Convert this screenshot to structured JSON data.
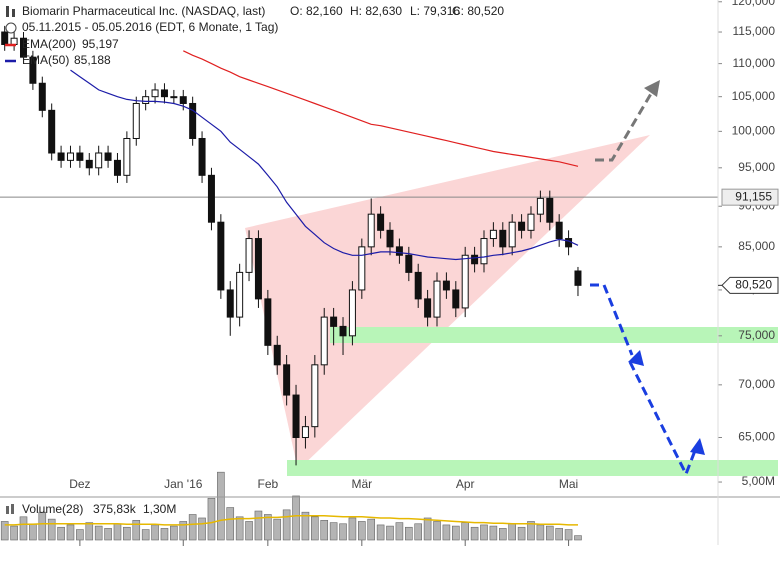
{
  "chart_data": [
    {
      "type": "candlestick",
      "title": "Biomarin Pharmaceutical Inc. (NASDAQ, last)",
      "quote": [
        "O: 82,160",
        "H: 82,630",
        "L: 79,316",
        "C: 80,520"
      ],
      "subtitle": "05.11.2015 - 05.05.2016 (EDT, 6 Monate, 1 Tag)",
      "categories": [
        null,
        null,
        null,
        null,
        null,
        null,
        null,
        null,
        null,
        null,
        null,
        null,
        null,
        null,
        null,
        null,
        null,
        null,
        null,
        null,
        null,
        null,
        null,
        null,
        null,
        null,
        null,
        null,
        null,
        null,
        null,
        null,
        null,
        null,
        null,
        null,
        null,
        null,
        null,
        null,
        null,
        null,
        null,
        null,
        null,
        null,
        null,
        null,
        null,
        null,
        null,
        null,
        null,
        null,
        null,
        null,
        null,
        null,
        null,
        null,
        null,
        null
      ],
      "open": [
        115,
        113,
        114,
        111,
        107,
        103,
        97,
        96,
        97,
        96,
        95,
        97,
        96,
        94,
        99,
        104,
        105,
        106,
        105,
        105,
        104,
        99,
        94,
        88,
        80,
        77,
        82,
        86,
        79,
        74,
        72,
        69,
        65,
        66,
        72,
        77,
        76,
        75,
        80,
        85,
        89,
        87,
        85,
        84,
        82,
        79,
        77,
        81,
        80,
        78,
        84,
        83,
        86,
        87,
        85,
        88,
        87,
        89,
        91,
        88,
        86,
        82.16
      ],
      "high": [
        116,
        115,
        115,
        112,
        108,
        104,
        98,
        98,
        98,
        97,
        98,
        98,
        97,
        100,
        105,
        106,
        107,
        107,
        106,
        106,
        105,
        100,
        95,
        89,
        81,
        83,
        87,
        87,
        80,
        75,
        73,
        70,
        67,
        73,
        78,
        78,
        77,
        81,
        86,
        91,
        90,
        88,
        86,
        85,
        83,
        80,
        82,
        82,
        81,
        85,
        85,
        87,
        88,
        88,
        89,
        89,
        90,
        92,
        92,
        89,
        87,
        82.63
      ],
      "low": [
        112,
        112,
        110,
        106,
        102,
        96,
        95,
        95,
        95,
        94,
        94,
        95,
        93,
        93,
        98,
        103,
        104,
        104,
        104,
        103,
        98,
        93,
        87,
        79,
        75,
        76,
        81,
        78,
        73,
        71,
        68,
        62.5,
        64,
        65,
        71,
        74,
        73,
        74,
        79,
        84,
        86,
        84,
        83,
        81,
        78,
        76,
        76,
        79,
        77,
        77,
        82,
        82,
        85,
        84,
        84,
        86,
        86,
        88,
        87,
        85,
        84,
        79.316
      ],
      "close": [
        113,
        114,
        111,
        107,
        103,
        97,
        96,
        97,
        96,
        95,
        97,
        96,
        94,
        99,
        104,
        105,
        106,
        105,
        105,
        104,
        99,
        94,
        88,
        80,
        77,
        82,
        86,
        79,
        74,
        72,
        69,
        65,
        66,
        72,
        77,
        76,
        75,
        80,
        85,
        89,
        87,
        85,
        84,
        82,
        79,
        77,
        81,
        80,
        78,
        84,
        83,
        86,
        87,
        85,
        88,
        87,
        89,
        91,
        88,
        86,
        85,
        80.52
      ],
      "series": [
        {
          "name": "EMA(200)",
          "color": "#e02020",
          "last_label": "95,197",
          "values": [
            null,
            null,
            null,
            null,
            null,
            null,
            null,
            null,
            null,
            null,
            null,
            null,
            null,
            null,
            null,
            null,
            null,
            null,
            null,
            112,
            111.3,
            110.7,
            110,
            109.3,
            108.7,
            108,
            107.5,
            107,
            106.5,
            106,
            105.5,
            105,
            104.5,
            104,
            103.5,
            103,
            102.5,
            102,
            101.5,
            101,
            100.8,
            100.5,
            100.2,
            99.9,
            99.6,
            99.3,
            99,
            98.7,
            98.4,
            98.1,
            97.8,
            97.5,
            97.2,
            97,
            96.8,
            96.6,
            96.4,
            96.2,
            96,
            95.8,
            95.5,
            95.197
          ]
        },
        {
          "name": "EMA(50)",
          "color": "#1c1ca8",
          "last_label": "85,188",
          "values": [
            null,
            null,
            null,
            null,
            null,
            null,
            null,
            109,
            108,
            107,
            106,
            105.5,
            105,
            104.6,
            104.4,
            104.3,
            104.3,
            104.2,
            104,
            103.6,
            103,
            102,
            101,
            100,
            98.5,
            97.5,
            96.5,
            95.5,
            94,
            92.5,
            90.5,
            89,
            87.5,
            86.5,
            85.5,
            84.8,
            84.3,
            84,
            84,
            84.2,
            84.4,
            84.4,
            84.3,
            84.2,
            84,
            83.8,
            83.7,
            83.6,
            83.5,
            83.6,
            83.7,
            83.8,
            84,
            84.1,
            84.3,
            84.5,
            84.8,
            85.2,
            85.6,
            85.9,
            85.7,
            85.188
          ]
        }
      ],
      "xlim": [
        0,
        76.4
      ],
      "xticks": [
        {
          "value": 8,
          "label": "Dez"
        },
        {
          "value": 19,
          "label": "Jan '16"
        },
        {
          "value": 28,
          "label": "Feb"
        },
        {
          "value": 38,
          "label": "Mär"
        },
        {
          "value": 49,
          "label": "Apr"
        },
        {
          "value": 60,
          "label": "Mai"
        }
      ],
      "ylim": [
        61.4,
        120.3
      ],
      "log": true,
      "yticks": [
        {
          "value": 65,
          "label": "65,000"
        },
        {
          "value": 70,
          "label": "70,000"
        },
        {
          "value": 75,
          "label": "75,000"
        },
        {
          "value": 80,
          "label": "80,000"
        },
        {
          "value": 85,
          "label": "85,000"
        },
        {
          "value": 90,
          "label": "90,000"
        },
        {
          "value": 95,
          "label": "95,000"
        },
        {
          "value": 100,
          "label": "100,000"
        },
        {
          "value": 105,
          "label": "105,000"
        },
        {
          "value": 110,
          "label": "110,000"
        },
        {
          "value": 115,
          "label": "115,000"
        },
        {
          "value": 120,
          "label": "120,000"
        }
      ],
      "hline": {
        "value": 91.155,
        "label": "91,155"
      },
      "last_price": {
        "value": 80.52,
        "label": "80,520"
      }
    },
    {
      "type": "bar",
      "categories": [
        null,
        null,
        null,
        null,
        null,
        null,
        null,
        null,
        null,
        null,
        null,
        null,
        null,
        null,
        null,
        null,
        null,
        null,
        null,
        null,
        null,
        null,
        null,
        null,
        null,
        null,
        null,
        null,
        null,
        null,
        null,
        null,
        null,
        null,
        null,
        null,
        null,
        null,
        null,
        null,
        null,
        null,
        null,
        null,
        null,
        null,
        null,
        null,
        null,
        null,
        null,
        null,
        null,
        null,
        null,
        null,
        null,
        null,
        null,
        null,
        null,
        null
      ],
      "series": [
        {
          "name": "Volume(28)",
          "color": "#b4b4b4",
          "last_label": "375,83k",
          "values": [
            1.6,
            1.2,
            2.0,
            1.4,
            2.4,
            1.8,
            1.1,
            1.3,
            0.9,
            1.5,
            1.2,
            1.0,
            1.4,
            1.1,
            1.7,
            0.9,
            1.3,
            1.0,
            1.2,
            1.6,
            2.2,
            1.9,
            3.6,
            5.85,
            2.8,
            2.0,
            1.6,
            2.5,
            2.2,
            1.8,
            2.6,
            3.8,
            2.4,
            2.0,
            1.7,
            1.5,
            1.4,
            1.9,
            1.6,
            1.8,
            1.3,
            1.2,
            1.5,
            1.1,
            1.4,
            1.9,
            1.6,
            1.3,
            1.2,
            1.5,
            1.1,
            1.3,
            1.2,
            1.0,
            1.4,
            1.1,
            1.6,
            1.3,
            1.2,
            1.0,
            0.9,
            0.37583
          ]
        },
        {
          "color": "#e6b800",
          "last_label": "1,30M",
          "values": [
            1.3,
            1.3,
            1.35,
            1.35,
            1.4,
            1.4,
            1.4,
            1.4,
            1.4,
            1.4,
            1.4,
            1.4,
            1.4,
            1.35,
            1.35,
            1.35,
            1.35,
            1.3,
            1.3,
            1.3,
            1.35,
            1.4,
            1.5,
            1.7,
            1.8,
            1.85,
            1.85,
            1.9,
            1.95,
            1.95,
            2.0,
            2.1,
            2.1,
            2.1,
            2.1,
            2.05,
            2.0,
            2.0,
            2.0,
            1.95,
            1.9,
            1.9,
            1.85,
            1.85,
            1.8,
            1.75,
            1.7,
            1.65,
            1.6,
            1.55,
            1.5,
            1.5,
            1.45,
            1.45,
            1.4,
            1.4,
            1.4,
            1.35,
            1.35,
            1.35,
            1.3,
            1.3
          ]
        }
      ],
      "xlim": [
        0,
        76.4
      ],
      "ylim": [
        0,
        5.9
      ],
      "yticks": [
        {
          "value": 5,
          "label": "5,00M"
        }
      ]
    }
  ]
}
